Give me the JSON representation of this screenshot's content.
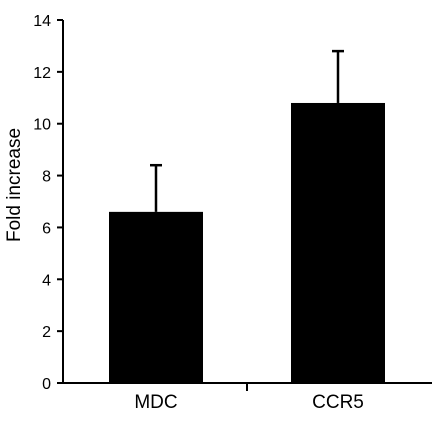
{
  "chart_data": {
    "type": "bar",
    "title": "",
    "xlabel": "",
    "ylabel": "Fold increase",
    "ylim": [
      0,
      14
    ],
    "yticks": [
      0,
      2,
      4,
      6,
      8,
      10,
      12,
      14
    ],
    "categories": [
      "MDC",
      "CCR5"
    ],
    "series": [
      {
        "values": [
          6.6,
          10.8
        ],
        "error_upper": [
          1.8,
          2.0
        ]
      }
    ],
    "grid": false,
    "legend": "none",
    "colors": {
      "bar": "#000000",
      "axis": "#000000"
    }
  }
}
